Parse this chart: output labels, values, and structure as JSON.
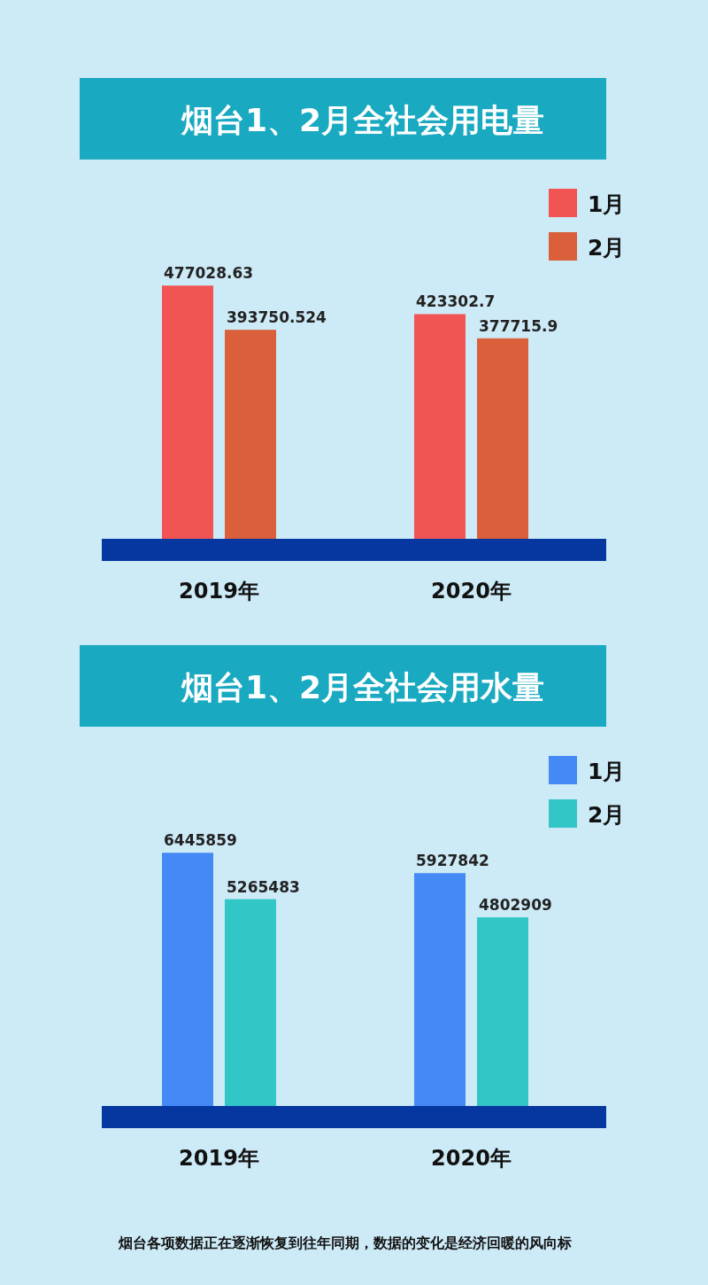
{
  "chart_data": [
    {
      "type": "bar",
      "title": "烟台1、2月全社会用电量",
      "categories": [
        "2019年",
        "2020年"
      ],
      "legend": "top right",
      "data_labels": true,
      "series": [
        {
          "name": "1月",
          "color": "#f25454",
          "values": [
            477028.63,
            423302.7
          ]
        },
        {
          "name": "2月",
          "color": "#d9603a",
          "values": [
            393750.524,
            377715.9
          ]
        }
      ]
    },
    {
      "type": "bar",
      "title": "烟台1、2月全社会用水量",
      "categories": [
        "2019年",
        "2020年"
      ],
      "legend": "top right",
      "data_labels": true,
      "series": [
        {
          "name": "1月",
          "color": "#4489f5",
          "values": [
            6445859,
            5927842
          ]
        },
        {
          "name": "2月",
          "color": "#33c6c6",
          "values": [
            5265483,
            4802909
          ]
        }
      ],
      "annotations": [
        "烟台各项数据正在逐渐恢复到往年同期，数据的变化是经济回暖的风向标"
      ]
    }
  ]
}
